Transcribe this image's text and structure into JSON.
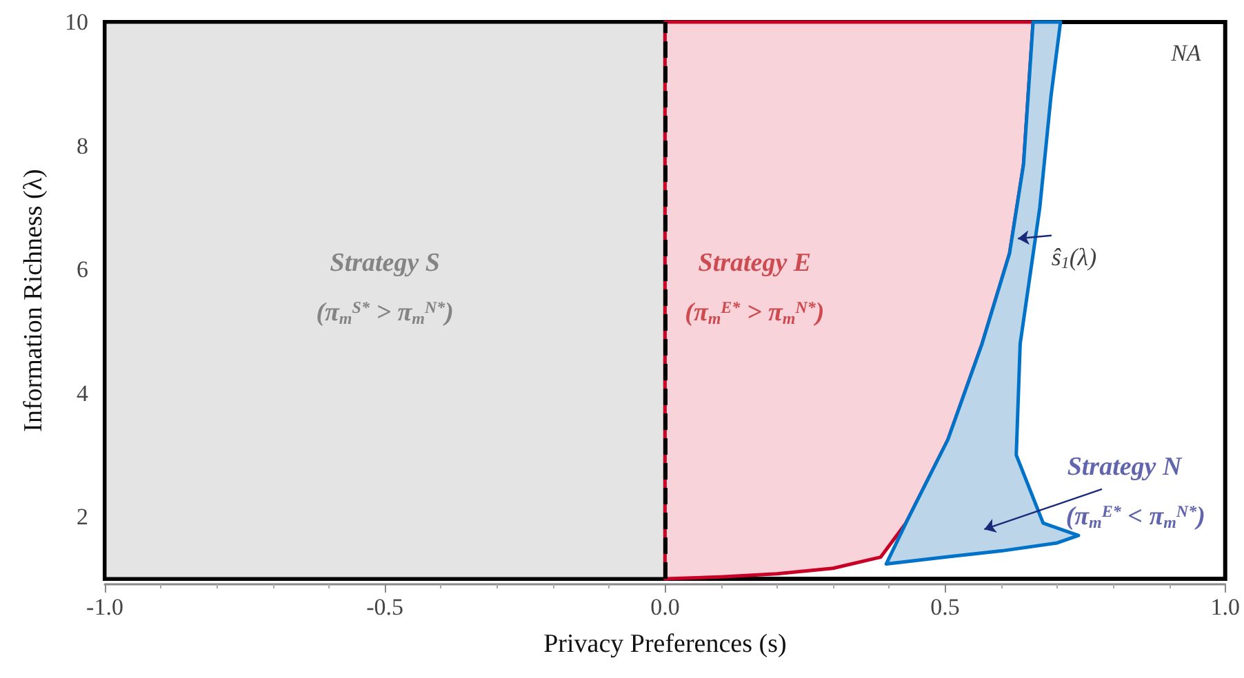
{
  "chart_data": {
    "type": "area",
    "xlabel": "Privacy Preferences (s)",
    "ylabel": "Information Richness (λ)",
    "xlim": [
      -1,
      1
    ],
    "ylim": [
      1,
      10
    ],
    "xticks": [
      {
        "value": -1,
        "label": "-1.0"
      },
      {
        "value": -0.5,
        "label": "-0.5"
      },
      {
        "value": 0,
        "label": "0.0"
      },
      {
        "value": 0.5,
        "label": "0.5"
      },
      {
        "value": 1,
        "label": "1.0"
      }
    ],
    "yticks": [
      2,
      4,
      6,
      8,
      10
    ],
    "grid": false,
    "series": [
      {
        "color": "#e4e4e4",
        "x": [
          -1,
          0,
          0,
          -1
        ],
        "values": [
          1,
          1,
          10,
          10
        ]
      },
      {
        "color": "#f9d3da",
        "x": [
          0,
          0.1,
          0.2,
          0.3,
          0.385,
          0.43,
          0.505,
          0.566,
          0.615,
          0.64,
          0.657,
          0,
          0
        ],
        "values": [
          1,
          1.03,
          1.08,
          1.17,
          1.35,
          1.9,
          3.25,
          4.8,
          6.26,
          7.7,
          10,
          10,
          1
        ]
      },
      {
        "color": "#bcd5e8",
        "x": [
          0.395,
          0.5,
          0.6,
          0.7,
          0.738,
          0.675,
          0.627,
          0.634,
          0.669,
          0.689,
          0.706,
          0.657,
          0.64,
          0.615,
          0.566,
          0.505,
          0.43,
          0.395
        ],
        "values": [
          1.24,
          1.35,
          1.45,
          1.58,
          1.7,
          1.9,
          3.0,
          4.8,
          7.0,
          8.8,
          10,
          10,
          7.7,
          6.26,
          4.8,
          3.25,
          1.9,
          1.24
        ]
      }
    ],
    "ref_lines": [
      {
        "axis": "x",
        "value": 0,
        "color": "#000000",
        "line_style": "dashed"
      }
    ],
    "annotations": [
      "Strategy S",
      "(π$_{m}$$^{S*}$ > π$_{m}$$^{N*}$)",
      "Strategy E",
      "(π$_{m}$$^{E*}$ > π$_{m}$$^{N*}$)",
      {
        "text": "ŝ$_{1}$(λ)",
        "x": 0.63,
        "y": 6.5
      },
      "Strategy N",
      "(π$_{m}$$^{E*}$ < π$_{m}$$^{N*}$)",
      "NA"
    ]
  }
}
